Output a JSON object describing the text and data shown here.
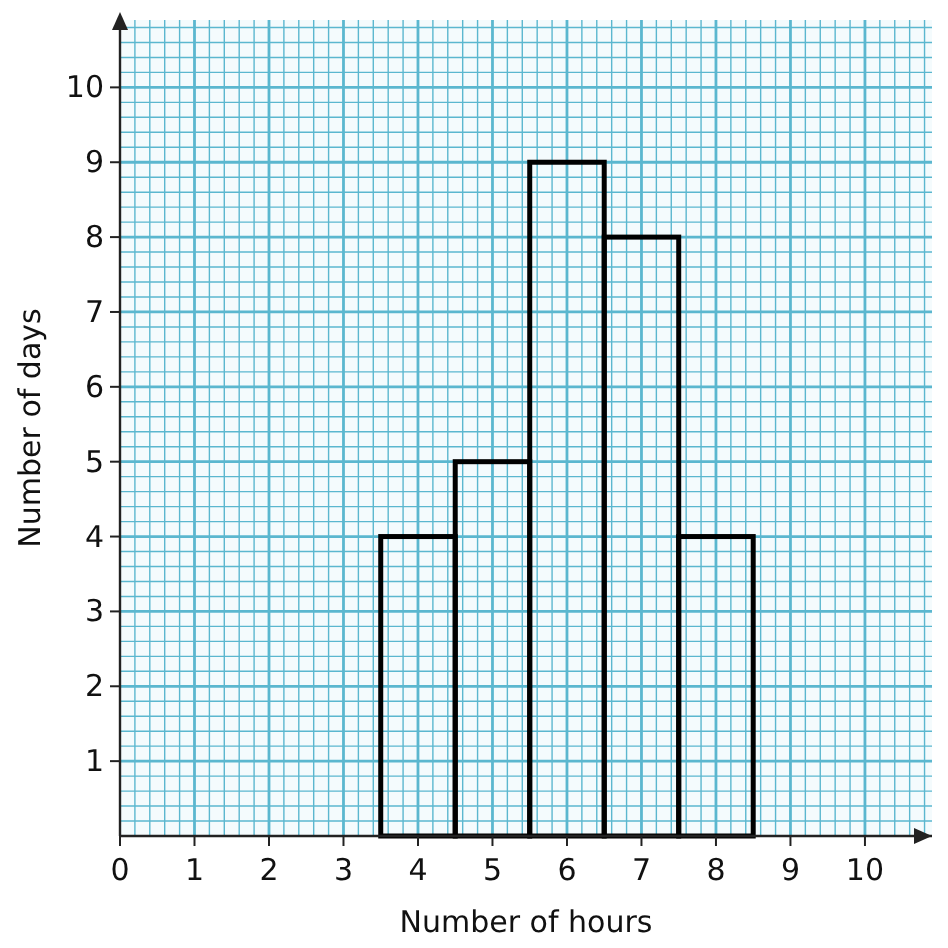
{
  "chart_data": {
    "type": "histogram",
    "xlabel": "Number of hours",
    "ylabel": "Number of days",
    "bins": [
      3.5,
      4.5,
      5.5,
      6.5,
      7.5,
      8.5
    ],
    "values": [
      4,
      5,
      9,
      8,
      4
    ],
    "color": "#000000",
    "xlim": [
      0,
      10.9
    ],
    "ylim": [
      0,
      10.9
    ],
    "xticks": [
      0,
      {
        "value": 0.2,
        "label": null
      },
      {
        "value": 0.4,
        "label": null
      },
      {
        "value": 0.6,
        "label": null
      },
      {
        "value": 0.8,
        "label": null
      },
      1,
      {
        "value": 1.2,
        "label": null
      },
      {
        "value": 1.4,
        "label": null
      },
      {
        "value": 1.6,
        "label": null
      },
      {
        "value": 1.8,
        "label": null
      },
      2,
      {
        "value": 2.2,
        "label": null
      },
      {
        "value": 2.4,
        "label": null
      },
      {
        "value": 2.6,
        "label": null
      },
      {
        "value": 2.8,
        "label": null
      },
      3,
      {
        "value": 3.2,
        "label": null
      },
      {
        "value": 3.4,
        "label": null
      },
      {
        "value": 3.6,
        "label": null
      },
      {
        "value": 3.8,
        "label": null
      },
      4,
      {
        "value": 4.2,
        "label": null
      },
      {
        "value": 4.4,
        "label": null
      },
      {
        "value": 4.6,
        "label": null
      },
      {
        "value": 4.8,
        "label": null
      },
      5,
      {
        "value": 5.2,
        "label": null
      },
      {
        "value": 5.4,
        "label": null
      },
      {
        "value": 5.6,
        "label": null
      },
      {
        "value": 5.8,
        "label": null
      },
      6,
      {
        "value": 6.2,
        "label": null
      },
      {
        "value": 6.4,
        "label": null
      },
      {
        "value": 6.6,
        "label": null
      },
      {
        "value": 6.8,
        "label": null
      },
      7,
      {
        "value": 7.2,
        "label": null
      },
      {
        "value": 7.4,
        "label": null
      },
      {
        "value": 7.6,
        "label": null
      },
      {
        "value": 7.8,
        "label": null
      },
      8,
      {
        "value": 8.2,
        "label": null
      },
      {
        "value": 8.4,
        "label": null
      },
      {
        "value": 8.6,
        "label": null
      },
      {
        "value": 8.8,
        "label": null
      },
      9,
      {
        "value": 9.2,
        "label": null
      },
      {
        "value": 9.4,
        "label": null
      },
      {
        "value": 9.6,
        "label": null
      },
      {
        "value": 9.8,
        "label": null
      },
      10,
      {
        "value": 10.2,
        "label": null
      },
      {
        "value": 10.4,
        "label": null
      },
      {
        "value": 10.6,
        "label": null
      },
      {
        "value": 10.8,
        "label": null
      }
    ],
    "yticks": [
      {
        "value": 0.2,
        "label": null
      },
      {
        "value": 0.4,
        "label": null
      },
      {
        "value": 0.6,
        "label": null
      },
      {
        "value": 0.8,
        "label": null
      },
      1,
      {
        "value": 1.2,
        "label": null
      },
      {
        "value": 1.4,
        "label": null
      },
      {
        "value": 1.6,
        "label": null
      },
      {
        "value": 1.8,
        "label": null
      },
      2,
      {
        "value": 2.2,
        "label": null
      },
      {
        "value": 2.4,
        "label": null
      },
      {
        "value": 2.6,
        "label": null
      },
      {
        "value": 2.8,
        "label": null
      },
      3,
      {
        "value": 3.2,
        "label": null
      },
      {
        "value": 3.4,
        "label": null
      },
      {
        "value": 3.6,
        "label": null
      },
      {
        "value": 3.8,
        "label": null
      },
      4,
      {
        "value": 4.2,
        "label": null
      },
      {
        "value": 4.4,
        "label": null
      },
      {
        "value": 4.6,
        "label": null
      },
      {
        "value": 4.8,
        "label": null
      },
      5,
      {
        "value": 5.2,
        "label": null
      },
      {
        "value": 5.4,
        "label": null
      },
      {
        "value": 5.6,
        "label": null
      },
      {
        "value": 5.8,
        "label": null
      },
      6,
      {
        "value": 6.2,
        "label": null
      },
      {
        "value": 6.4,
        "label": null
      },
      {
        "value": 6.6,
        "label": null
      },
      {
        "value": 6.8,
        "label": null
      },
      7,
      {
        "value": 7.2,
        "label": null
      },
      {
        "value": 7.4,
        "label": null
      },
      {
        "value": 7.6,
        "label": null
      },
      {
        "value": 7.8,
        "label": null
      },
      8,
      {
        "value": 8.2,
        "label": null
      },
      {
        "value": 8.4,
        "label": null
      },
      {
        "value": 8.6,
        "label": null
      },
      {
        "value": 8.8,
        "label": null
      },
      9,
      {
        "value": 9.2,
        "label": null
      },
      {
        "value": 9.4,
        "label": null
      },
      {
        "value": 9.6,
        "label": null
      },
      {
        "value": 9.8,
        "label": null
      },
      10,
      {
        "value": 10.2,
        "label": null
      },
      {
        "value": 10.4,
        "label": null
      },
      {
        "value": 10.6,
        "label": null
      },
      {
        "value": 10.8,
        "label": null
      }
    ],
    "grid": true
  }
}
